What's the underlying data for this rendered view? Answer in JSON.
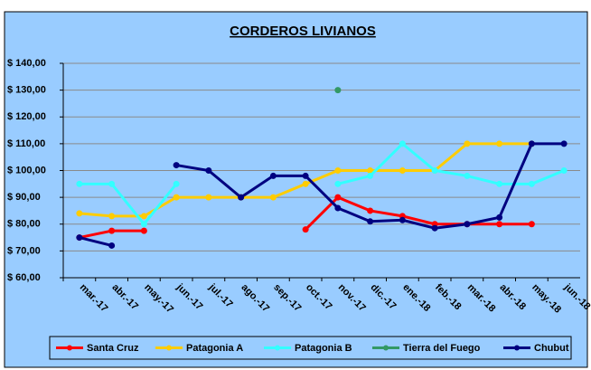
{
  "chart_data": {
    "type": "line",
    "title": "CORDEROS LIVIANOS",
    "categories": [
      "mar.-17",
      "abr.-17",
      "may.-17",
      "jun.-17",
      "jul.-17",
      "ago.-17",
      "sep.-17",
      "oct.-17",
      "nov.-17",
      "dic.-17",
      "ene.-18",
      "feb.-18",
      "mar.-18",
      "abr.-18",
      "may.-18",
      "jun.-18"
    ],
    "series": [
      {
        "name": "Santa Cruz",
        "color": "#ff0000",
        "values": [
          75,
          77.5,
          77.5,
          null,
          null,
          null,
          null,
          78,
          90,
          85,
          83,
          80,
          80,
          80,
          80,
          null
        ]
      },
      {
        "name": "Patagonia A",
        "color": "#ffcc00",
        "values": [
          84,
          83,
          83,
          90,
          90,
          90,
          90,
          95,
          100,
          100,
          100,
          100,
          110,
          110,
          110,
          null
        ]
      },
      {
        "name": "Patagonia B",
        "color": "#33ffff",
        "values": [
          95,
          95,
          80,
          95,
          null,
          null,
          null,
          null,
          95,
          98,
          110,
          100,
          98,
          95,
          95,
          100
        ]
      },
      {
        "name": "Tierra del Fuego",
        "color": "#339966",
        "values": [
          null,
          null,
          null,
          null,
          null,
          null,
          null,
          null,
          130,
          null,
          null,
          null,
          null,
          null,
          null,
          null
        ]
      },
      {
        "name": "Chubut",
        "color": "#000080",
        "values": [
          75,
          72,
          null,
          102,
          100,
          90,
          98,
          98,
          86,
          81,
          81.5,
          78.5,
          80,
          82.5,
          110,
          110
        ]
      }
    ],
    "ylim": [
      60,
      140
    ],
    "yticks": [
      {
        "value": 60,
        "label": "$ 60,00"
      },
      {
        "value": 70,
        "label": "$ 70,00"
      },
      {
        "value": 80,
        "label": "$ 80,00"
      },
      {
        "value": 90,
        "label": "$ 90,00"
      },
      {
        "value": 100,
        "label": "$ 100,00"
      },
      {
        "value": 110,
        "label": "$ 110,00"
      },
      {
        "value": 120,
        "label": "$ 120,00"
      },
      {
        "value": 130,
        "label": "$ 130,00"
      },
      {
        "value": 140,
        "label": "$ 140,00"
      }
    ],
    "grid": true,
    "legend": "bottom"
  }
}
